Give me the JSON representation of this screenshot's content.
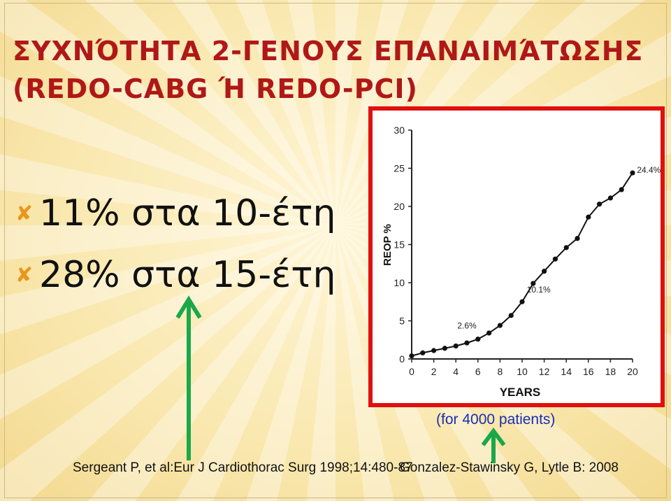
{
  "slide": {
    "title_line1": "ΣΥΧΝΌΤΗΤΑ 2-ΓΕΝΟΥΣ ΕΠΑΝΑΙΜΆΤΩΣΗΣ",
    "title_line2": "(REDO-CABG Ή REDO-PCI)",
    "bullets": [
      "11% στα 10-έτη",
      "28% στα 15-έτη"
    ],
    "bullet_icon": "x-mark-icon",
    "note": "(for 4000 patients)",
    "ref_left": "Sergeant P, et al:Eur J Cardiothorac Surg 1998;14:480-87",
    "ref_right": "Gonzalez-Stawinsky G, Lytle B: 2008",
    "colors": {
      "title": "#b01818",
      "arrow": "#1aa84a",
      "frame": "#e01010",
      "note": "#1a2fb0",
      "bullet": "#e8961c"
    }
  },
  "chart_data": {
    "type": "line",
    "xlabel": "YEARS",
    "ylabel": "REOP %",
    "xlim": [
      0,
      20
    ],
    "ylim": [
      0,
      30
    ],
    "xticks": [
      "0",
      "2",
      "4",
      "6",
      "8",
      "10",
      "12",
      "14",
      "16",
      "18",
      "20"
    ],
    "yticks": [
      "0",
      "5",
      "10",
      "15",
      "20",
      "25",
      "30"
    ],
    "grid": false,
    "x": [
      0,
      1,
      2,
      3,
      4,
      5,
      6,
      7,
      8,
      9,
      10,
      11,
      12,
      13,
      14,
      15,
      16,
      17,
      18,
      19,
      20
    ],
    "y": [
      0.4,
      0.8,
      1.1,
      1.4,
      1.7,
      2.1,
      2.6,
      3.4,
      4.4,
      5.7,
      7.5,
      9.9,
      11.5,
      13.1,
      14.6,
      15.8,
      18.6,
      20.3,
      21.1,
      22.2,
      24.4
    ],
    "annotations": [
      {
        "text": "2.6%",
        "x": 5,
        "y": 4.0
      },
      {
        "text": "10.1%",
        "x": 11.5,
        "y": 8.7
      },
      {
        "text": "24.4%",
        "x": 20.4,
        "y": 24.4
      }
    ]
  }
}
